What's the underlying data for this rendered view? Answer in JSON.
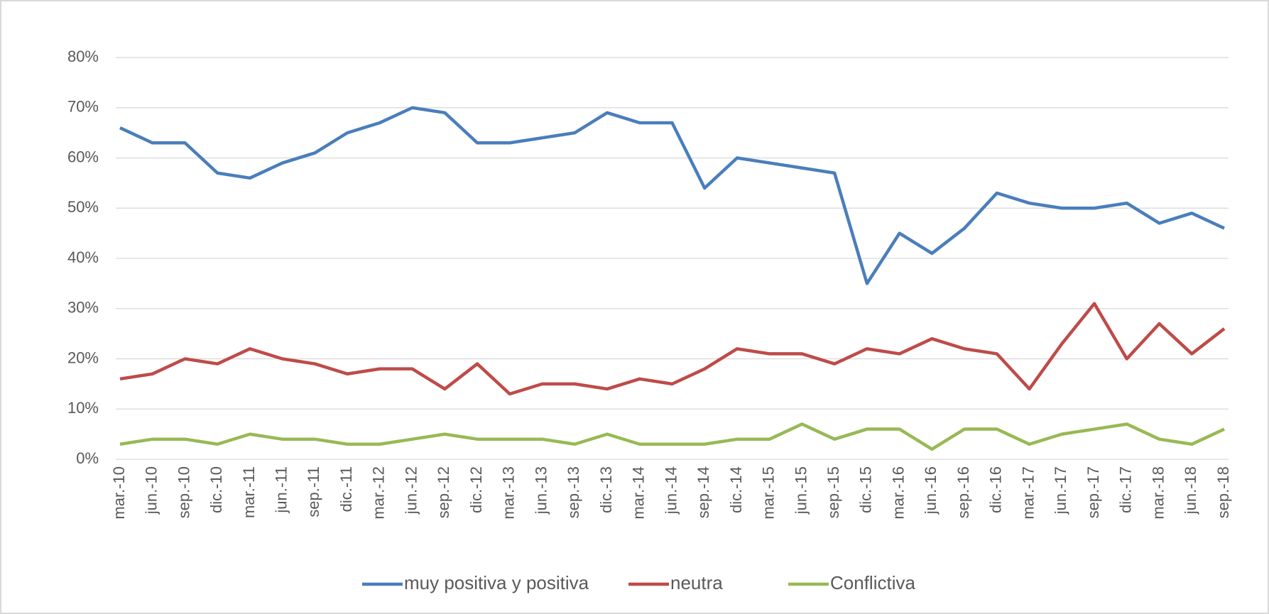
{
  "chart_data": {
    "type": "line",
    "categories": [
      "mar.-10",
      "jun.-10",
      "sep.-10",
      "dic.-10",
      "mar.-11",
      "jun.-11",
      "sep.-11",
      "dic.-11",
      "mar.-12",
      "jun.-12",
      "sep.-12",
      "dic.-12",
      "mar.-13",
      "jun.-13",
      "sep.-13",
      "dic.-13",
      "mar.-14",
      "jun.-14",
      "sep.-14",
      "dic.-14",
      "mar.-15",
      "jun.-15",
      "sep.-15",
      "dic.-15",
      "mar.-16",
      "jun.-16",
      "sep.-16",
      "dic.-16",
      "mar.-17",
      "jun.-17",
      "sep.-17",
      "dic.-17",
      "mar.-18",
      "jun.-18",
      "sep.-18"
    ],
    "series": [
      {
        "name": "muy positiva y positiva",
        "color": "#4a7ebb",
        "values": [
          66,
          63,
          63,
          57,
          56,
          59,
          61,
          65,
          67,
          70,
          69,
          63,
          63,
          64,
          65,
          69,
          67,
          67,
          54,
          60,
          59,
          58,
          57,
          35,
          45,
          41,
          46,
          53,
          51,
          50,
          50,
          51,
          47,
          49,
          46
        ]
      },
      {
        "name": "neutra",
        "color": "#be4b48",
        "values": [
          16,
          17,
          20,
          19,
          22,
          20,
          19,
          17,
          18,
          18,
          14,
          19,
          13,
          15,
          15,
          14,
          16,
          15,
          18,
          22,
          21,
          21,
          19,
          22,
          21,
          24,
          22,
          21,
          14,
          23,
          31,
          20,
          27,
          21,
          26
        ]
      },
      {
        "name": "Conflictiva",
        "color": "#98b954",
        "values": [
          3,
          4,
          4,
          3,
          5,
          4,
          4,
          3,
          3,
          4,
          5,
          4,
          4,
          4,
          3,
          5,
          3,
          3,
          3,
          4,
          4,
          7,
          4,
          6,
          6,
          2,
          6,
          6,
          3,
          5,
          6,
          7,
          4,
          3,
          6
        ]
      }
    ],
    "ylim": [
      0,
      80
    ],
    "yticks": [
      {
        "value": 0,
        "label": "0%"
      },
      {
        "value": 10,
        "label": "10%"
      },
      {
        "value": 20,
        "label": "20%"
      },
      {
        "value": 30,
        "label": "30%"
      },
      {
        "value": 40,
        "label": "40%"
      },
      {
        "value": 50,
        "label": "50%"
      },
      {
        "value": 60,
        "label": "60%"
      },
      {
        "value": 70,
        "label": "70%"
      },
      {
        "value": 80,
        "label": "80%"
      }
    ],
    "grid": true,
    "legend": "bottom"
  }
}
